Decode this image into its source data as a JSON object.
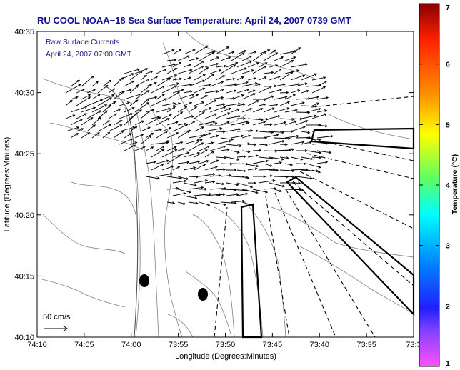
{
  "title": "RU COOL  NOAA−18  Sea Surface Temperature:  April 24, 2007 0739 GMT",
  "legend": {
    "line1": "Raw Surface Currents",
    "line2": "April 24, 2007 07:00 GMT"
  },
  "axes": {
    "xlabel": "Longitude (Degrees:Minutes)",
    "ylabel": "Latitude (Degrees:Minutes)",
    "xticks": [
      "74:10",
      "74:05",
      "74:00",
      "73:55",
      "73:50",
      "73:45",
      "73:40",
      "73:35",
      "73:3"
    ],
    "yticks": [
      "40:35",
      "40:30",
      "40:25",
      "40:20",
      "40:15",
      "40:10"
    ]
  },
  "scale": {
    "label": "50 cm/s"
  },
  "colorbar": {
    "title": "Temperature (°C)",
    "ticks": [
      "7",
      "6",
      "5",
      "4",
      "3",
      "2",
      "1"
    ],
    "range": [
      1,
      7
    ],
    "colors": [
      "#8a0000",
      "#ff2000",
      "#ff9000",
      "#ffff00",
      "#40ff80",
      "#00ffff",
      "#0060ff",
      "#2020ff",
      "#9030ff",
      "#ff50ff"
    ]
  }
}
